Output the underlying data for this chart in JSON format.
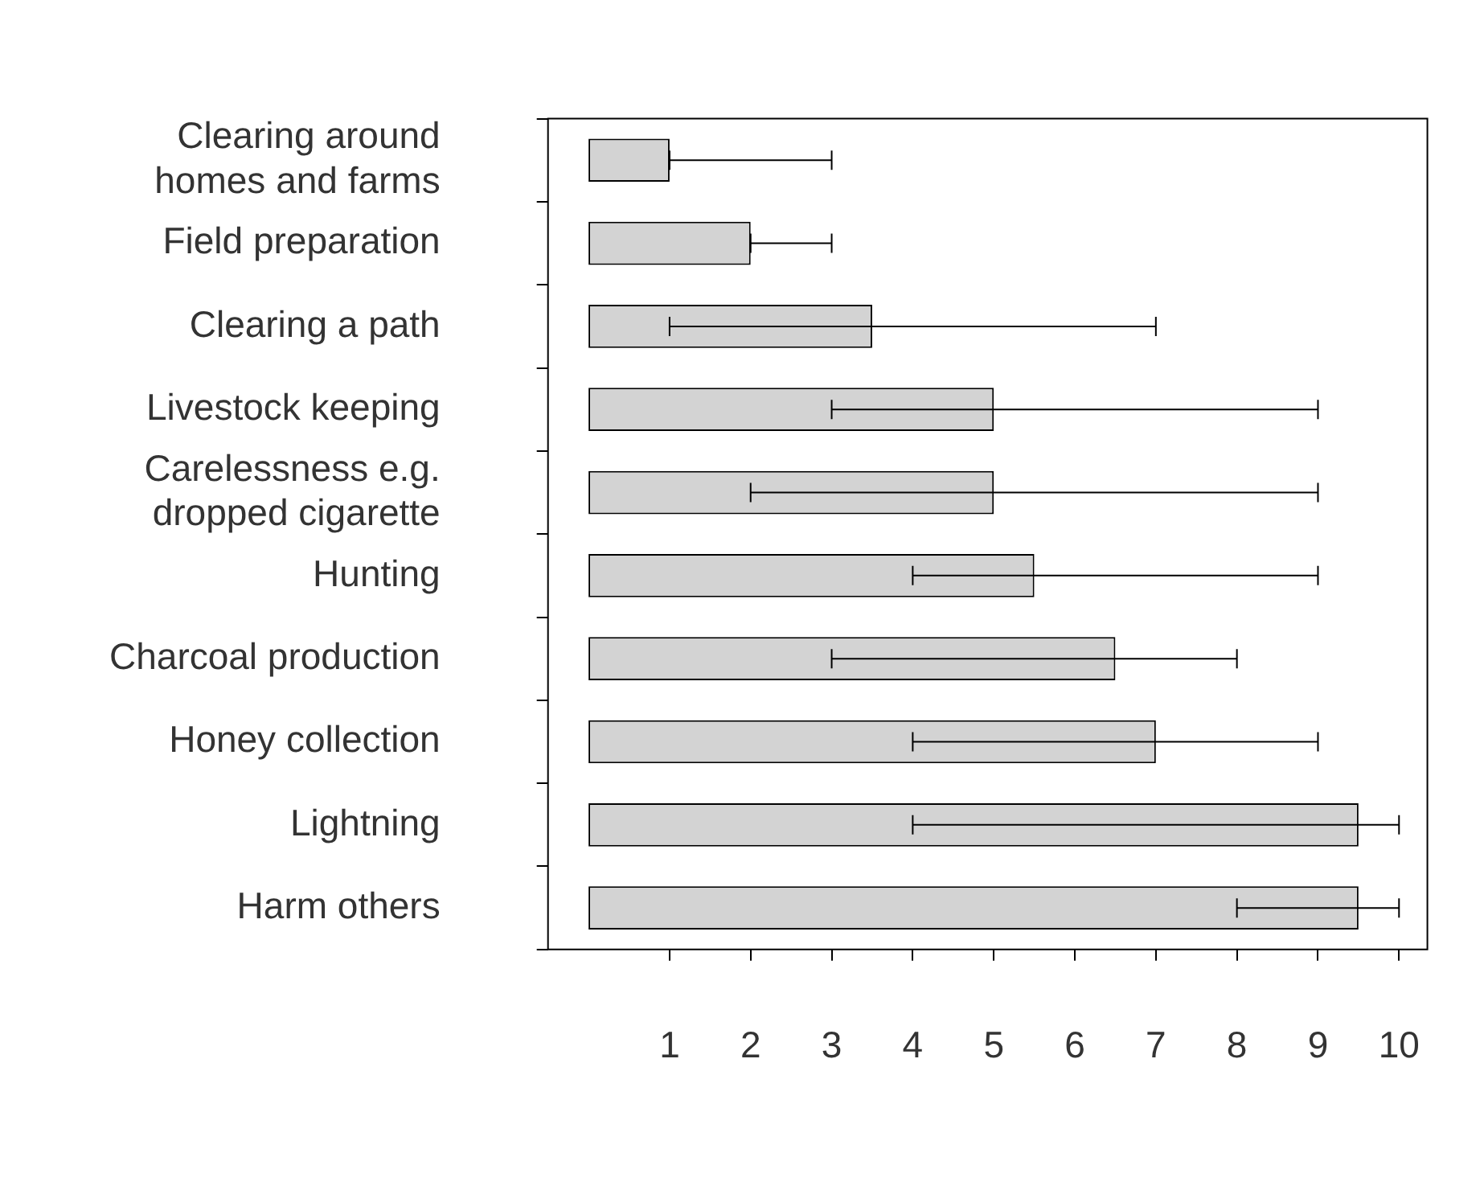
{
  "chart_data": {
    "type": "bar",
    "orientation": "horizontal",
    "categories": [
      "Clearing around homes and farms",
      "Field preparation",
      "Clearing a path",
      "Livestock keeping",
      "Carelessness e.g. dropped cigarette",
      "Hunting",
      "Charcoal production",
      "Honey collection",
      "Lightning",
      "Harm others"
    ],
    "values": [
      1,
      2,
      3.5,
      5,
      5,
      5.5,
      6.5,
      7,
      9.5,
      9.5
    ],
    "errors": [
      [
        1,
        3
      ],
      [
        2,
        3
      ],
      [
        1,
        7
      ],
      [
        3,
        9
      ],
      [
        2,
        9
      ],
      [
        4,
        9
      ],
      [
        3,
        8
      ],
      [
        4,
        9
      ],
      [
        4,
        10
      ],
      [
        8,
        10
      ]
    ],
    "color": "#d3d3d3",
    "xlim": [
      -0.5,
      10.35
    ],
    "xticks": [
      1,
      2,
      3,
      4,
      5,
      6,
      7,
      8,
      9,
      10
    ],
    "grid": false,
    "legend": false
  }
}
